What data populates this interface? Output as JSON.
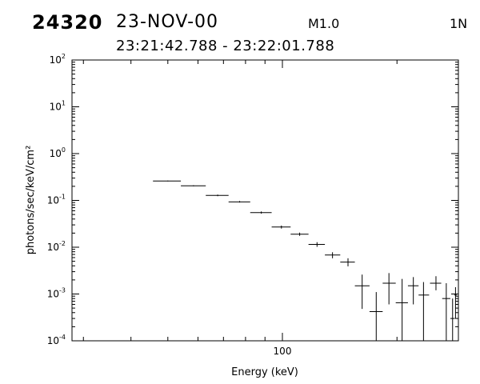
{
  "header": {
    "event_id": "24320",
    "date": "23-NOV-00",
    "flare_class": "M1.0",
    "detector": "1N",
    "time_range": "23:21:42.788 - 23:22:01.788"
  },
  "chart_data": {
    "type": "scatter",
    "xlabel": "Energy (keV)",
    "ylabel": "photons/sec/keV/cm²",
    "x_scale": "log",
    "y_scale": "log",
    "xlim": [
      28,
      290
    ],
    "ylim": [
      0.0001,
      100
    ],
    "x_ticks": [
      100
    ],
    "y_ticks": [
      {
        "value": 0.0001,
        "base": "10",
        "exp": "-4"
      },
      {
        "value": 0.001,
        "base": "10",
        "exp": "-3"
      },
      {
        "value": 0.01,
        "base": "10",
        "exp": "-2"
      },
      {
        "value": 0.1,
        "base": "10",
        "exp": "-1"
      },
      {
        "value": 1,
        "base": "10",
        "exp": "0"
      },
      {
        "value": 10,
        "base": "10",
        "exp": "1"
      },
      {
        "value": 100,
        "base": "10",
        "exp": "2"
      }
    ],
    "error_style": "crosses",
    "points": [
      {
        "x": 50.0,
        "xlo": 45.7,
        "xhi": 54.1,
        "y": 0.26,
        "ylo": 0.255,
        "yhi": 0.265
      },
      {
        "x": 58.4,
        "xlo": 54.1,
        "xhi": 62.9,
        "y": 0.205,
        "ylo": 0.2,
        "yhi": 0.21
      },
      {
        "x": 67.6,
        "xlo": 62.9,
        "xhi": 72.2,
        "y": 0.128,
        "ylo": 0.123,
        "yhi": 0.133
      },
      {
        "x": 77.2,
        "xlo": 72.2,
        "xhi": 82.3,
        "y": 0.093,
        "ylo": 0.09,
        "yhi": 0.097
      },
      {
        "x": 88.0,
        "xlo": 82.3,
        "xhi": 93.7,
        "y": 0.055,
        "ylo": 0.052,
        "yhi": 0.058
      },
      {
        "x": 99.4,
        "xlo": 93.7,
        "xhi": 105.1,
        "y": 0.027,
        "ylo": 0.025,
        "yhi": 0.029
      },
      {
        "x": 111.0,
        "xlo": 105.1,
        "xhi": 117.1,
        "y": 0.019,
        "ylo": 0.0175,
        "yhi": 0.0205
      },
      {
        "x": 123.3,
        "xlo": 117.1,
        "xhi": 129.3,
        "y": 0.0115,
        "ylo": 0.0102,
        "yhi": 0.0128
      },
      {
        "x": 135.4,
        "xlo": 129.3,
        "xhi": 141.9,
        "y": 0.0068,
        "ylo": 0.0058,
        "yhi": 0.0078
      },
      {
        "x": 148.7,
        "xlo": 141.9,
        "xhi": 155.0,
        "y": 0.0048,
        "ylo": 0.0039,
        "yhi": 0.0058
      },
      {
        "x": 162.0,
        "xlo": 155.0,
        "xhi": 169.4,
        "y": 0.0015,
        "ylo": 0.00048,
        "yhi": 0.0026
      },
      {
        "x": 176.4,
        "xlo": 169.4,
        "xhi": 183.4,
        "y": 0.00042,
        "ylo": 0.0001,
        "yhi": 0.0011
      },
      {
        "x": 190.5,
        "xlo": 183.4,
        "xhi": 198.5,
        "y": 0.0017,
        "ylo": 0.0006,
        "yhi": 0.0028
      },
      {
        "x": 206.3,
        "xlo": 198.5,
        "xhi": 213.7,
        "y": 0.00065,
        "ylo": 0.0001,
        "yhi": 0.0021
      },
      {
        "x": 220.8,
        "xlo": 213.7,
        "xhi": 227.9,
        "y": 0.0015,
        "ylo": 0.0006,
        "yhi": 0.0023
      },
      {
        "x": 234.8,
        "xlo": 227.9,
        "xhi": 242.9,
        "y": 0.00095,
        "ylo": 0.0001,
        "yhi": 0.0018
      },
      {
        "x": 253.2,
        "xlo": 244.2,
        "xhi": 261.4,
        "y": 0.0017,
        "ylo": 0.0012,
        "yhi": 0.0024
      },
      {
        "x": 269.5,
        "xlo": 262.9,
        "xhi": 276.2,
        "y": 0.0008,
        "ylo": 0.0001,
        "yhi": 0.0017
      },
      {
        "x": 280.0,
        "xlo": 276.2,
        "xhi": 283.8,
        "y": 0.0003,
        "ylo": 0.0001,
        "yhi": 0.0008
      },
      {
        "x": 285.0,
        "xlo": 283.0,
        "xhi": 287.0,
        "y": 0.00095,
        "ylo": 0.0003,
        "yhi": 0.0014
      }
    ]
  }
}
